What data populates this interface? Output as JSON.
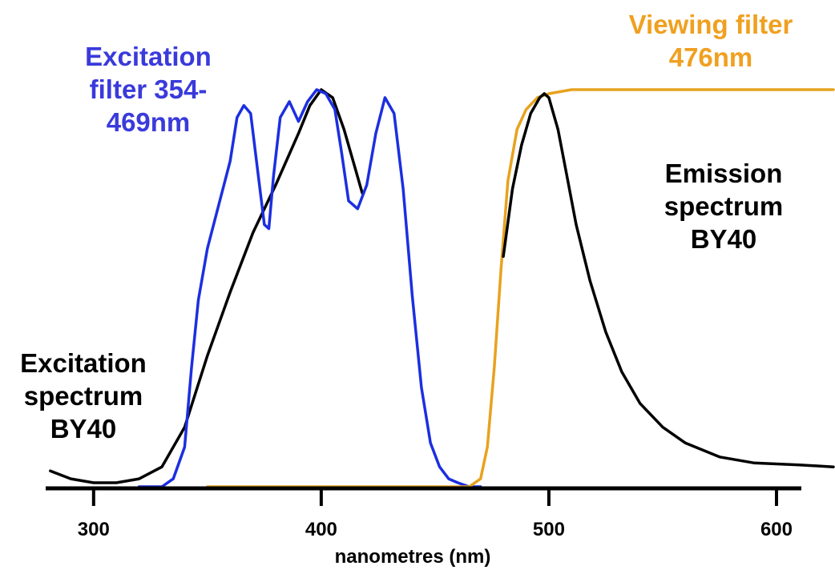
{
  "chart_data": {
    "type": "line",
    "xlabel": "nanometres (nm)",
    "ylabel": "",
    "xlim": [
      280,
      625
    ],
    "ylim": [
      0,
      100
    ],
    "grid": false,
    "xticks": [
      300,
      400,
      500,
      600
    ],
    "tick_labels": [
      "300",
      "400",
      "500",
      "600"
    ],
    "series": [
      {
        "name": "Excitation spectrum BY40",
        "color": "#000000",
        "x": [
          281,
          290,
          300,
          310,
          320,
          330,
          340,
          350,
          360,
          370,
          380,
          390,
          395,
          400,
          405,
          410,
          415,
          418
        ],
        "y": [
          4,
          2,
          1,
          1,
          2,
          5,
          15,
          33,
          49,
          64,
          76,
          89,
          96,
          100,
          98,
          90,
          80,
          74
        ]
      },
      {
        "name": "Excitation filter 354-469nm",
        "color": "#1c2fe0",
        "x": [
          320,
          330,
          335,
          340,
          343,
          346,
          350,
          355,
          360,
          363,
          366,
          369,
          372,
          375,
          377,
          379,
          382,
          386,
          390,
          394,
          398,
          402,
          406,
          409,
          412,
          416,
          420,
          424,
          428,
          432,
          436,
          440,
          444,
          448,
          452,
          456,
          460,
          465,
          470
        ],
        "y": [
          0,
          0,
          2,
          10,
          30,
          47,
          60,
          71,
          82,
          93,
          96,
          94,
          80,
          66,
          65,
          78,
          93,
          97,
          92,
          97,
          100,
          99,
          95,
          84,
          72,
          70,
          76,
          89,
          98,
          94,
          75,
          48,
          25,
          11,
          5,
          2,
          1,
          0,
          0
        ]
      },
      {
        "name": "Viewing filter 476nm",
        "color": "#e8a21f",
        "x": [
          350,
          400,
          440,
          465,
          470,
          473,
          476,
          479,
          482,
          486,
          490,
          495,
          500,
          510,
          525,
          550,
          600,
          625
        ],
        "y": [
          0,
          0,
          0,
          0,
          2,
          10,
          30,
          55,
          77,
          90,
          95,
          98,
          99,
          100,
          100,
          100,
          100,
          100
        ]
      },
      {
        "name": "Emission spectrum BY40",
        "color": "#000000",
        "x": [
          480,
          484,
          488,
          492,
          496,
          498,
          500,
          504,
          508,
          512,
          518,
          525,
          532,
          540,
          550,
          560,
          575,
          590,
          610,
          625
        ],
        "y": [
          58,
          75,
          86,
          94,
          98,
          99,
          98,
          90,
          78,
          66,
          52,
          39,
          29,
          21,
          15,
          11,
          7.5,
          6,
          5.5,
          5
        ]
      }
    ],
    "annotations": [
      {
        "text": [
          "Excitation",
          "filter 354-",
          "469nm"
        ],
        "color": "#3a3adc"
      },
      {
        "text": [
          "Viewing filter",
          "476nm"
        ],
        "color": "#f0a020"
      },
      {
        "text": [
          "Emission",
          "spectrum",
          "BY40"
        ],
        "color": "#000000"
      },
      {
        "text": [
          "Excitation",
          "spectrum",
          "BY40"
        ],
        "color": "#000000"
      }
    ]
  }
}
